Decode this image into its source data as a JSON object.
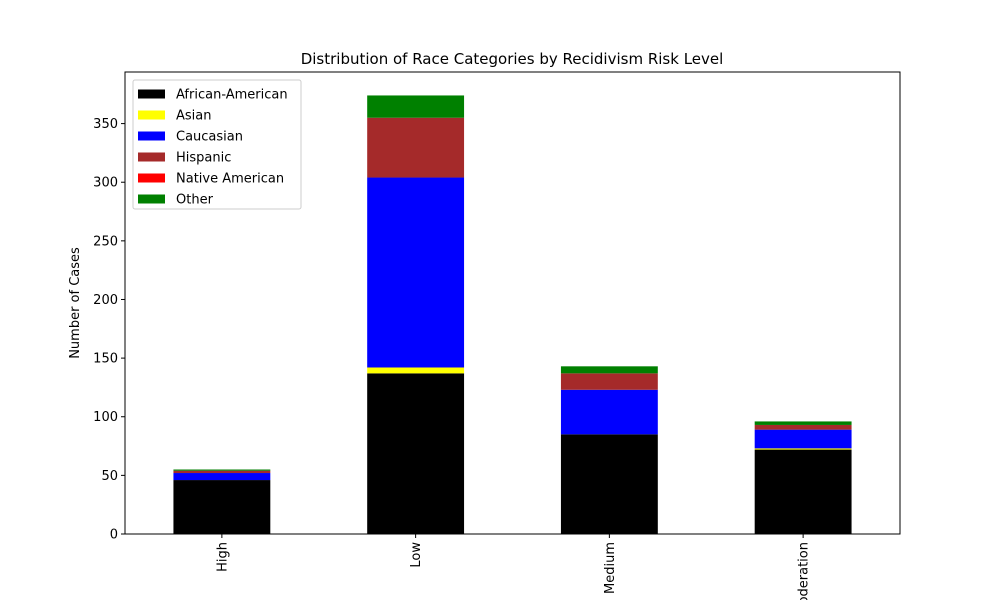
{
  "chart_data": {
    "type": "bar",
    "stacked": true,
    "title": "Distribution of Race Categories by Recidivism Risk Level",
    "xlabel": "",
    "ylabel": "Number of Cases",
    "ylim": [
      0,
      394
    ],
    "yticks": [
      0,
      50,
      100,
      150,
      200,
      250,
      300,
      350
    ],
    "categories": [
      "High",
      "Low",
      "Medium",
      "Moderation"
    ],
    "series": [
      {
        "name": "African-American",
        "color": "#000000",
        "values": [
          46,
          137,
          85,
          72
        ]
      },
      {
        "name": "Asian",
        "color": "#ffff00",
        "values": [
          0,
          5,
          0,
          1
        ]
      },
      {
        "name": "Caucasian",
        "color": "#0000ff",
        "values": [
          6,
          162,
          38,
          16
        ]
      },
      {
        "name": "Hispanic",
        "color": "#a52a2a",
        "values": [
          2,
          51,
          14,
          4
        ]
      },
      {
        "name": "Native American",
        "color": "#ff0000",
        "values": [
          0,
          0,
          0,
          0
        ]
      },
      {
        "name": "Other",
        "color": "#008000",
        "values": [
          1,
          19,
          6,
          3
        ]
      }
    ],
    "grid": false,
    "legend": "top-left"
  }
}
